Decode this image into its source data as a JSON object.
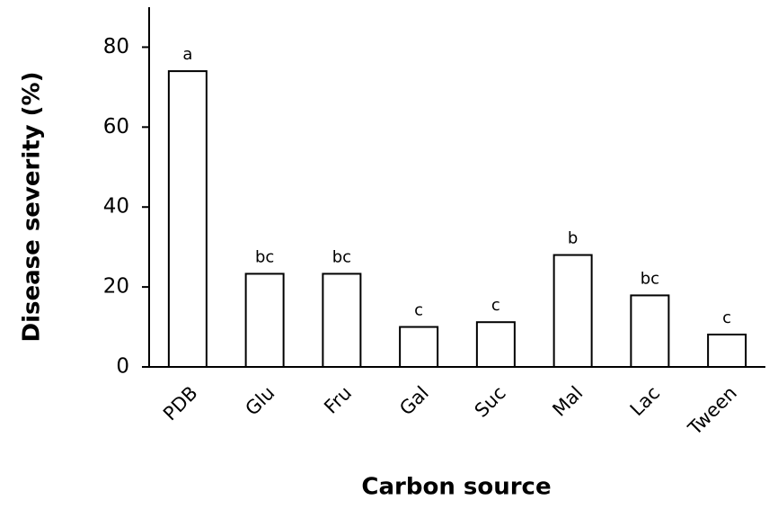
{
  "chart_data": {
    "type": "bar",
    "x_label": "Carbon source",
    "y_label": "Disease severity (%)",
    "categories": [
      "PDB",
      "Glu",
      "Fru",
      "Gal",
      "Suc",
      "Mal",
      "Lac",
      "Tween"
    ],
    "values": [
      74,
      23.3,
      23.3,
      10,
      11.2,
      28,
      17.9,
      8.1
    ],
    "significance_labels": [
      "a",
      "bc",
      "bc",
      "c",
      "c",
      "b",
      "bc",
      "c"
    ],
    "color": "#ffffff",
    "edgecolor": "#000000",
    "ylim": [
      0,
      90
    ],
    "yticks": [
      0,
      20,
      40,
      60,
      80
    ],
    "grid": false
  }
}
